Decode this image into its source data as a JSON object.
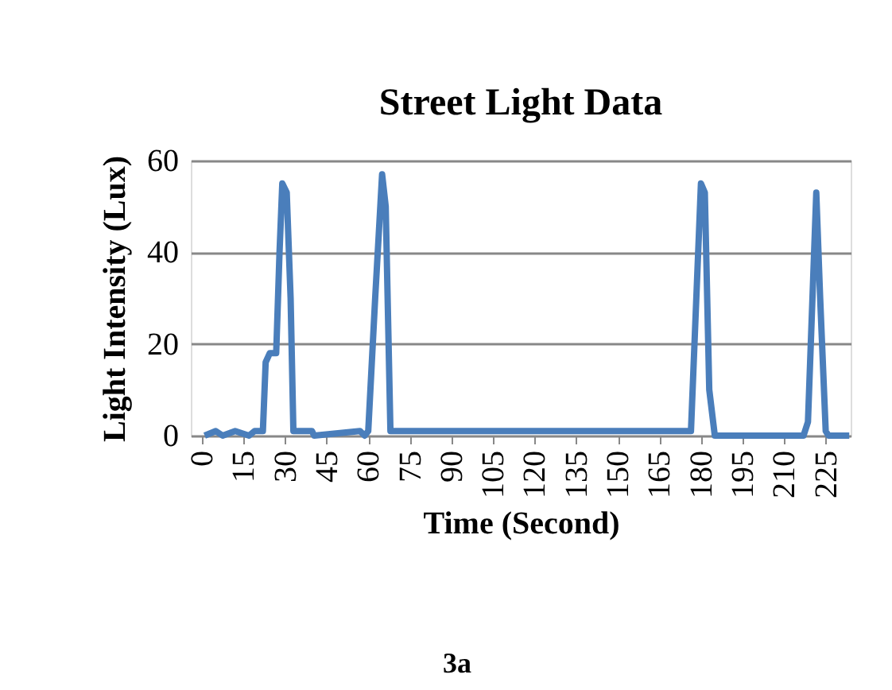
{
  "chart_data": {
    "type": "line",
    "title": "Street Light Data",
    "xlabel": "Time (Second)",
    "ylabel": "Light Intensity (Lux)",
    "annotations": [
      "3a"
    ],
    "x": [
      1,
      5,
      7.5,
      12,
      17,
      19,
      22,
      23,
      24.5,
      26.8,
      28,
      29,
      30.6,
      32,
      33,
      39.7,
      40.5,
      57,
      58.7,
      60,
      62.5,
      65,
      66.3,
      68,
      176.4,
      180,
      181.4,
      183,
      185,
      217,
      218.6,
      221.6,
      223,
      225,
      226,
      233.5
    ],
    "series": [
      {
        "color": "#4a7ebb",
        "values": [
          0,
          1,
          0,
          1,
          0,
          1,
          1,
          16,
          18,
          18,
          40,
          55,
          53,
          30,
          1,
          1,
          0,
          1,
          0,
          1,
          30,
          57,
          50,
          1,
          1,
          55,
          53,
          10,
          0,
          0,
          3,
          53,
          30,
          1,
          0,
          0
        ]
      }
    ],
    "xlim": [
      -4,
      234
    ],
    "xticks": [
      0,
      15,
      30,
      45,
      60,
      75,
      90,
      105,
      120,
      135,
      150,
      165,
      180,
      195,
      210,
      225
    ],
    "ylim": [
      0,
      60
    ],
    "yticks": [
      0,
      20,
      40,
      60
    ],
    "grid": "y",
    "legend": false,
    "marker": "none",
    "line_style": "solid"
  }
}
